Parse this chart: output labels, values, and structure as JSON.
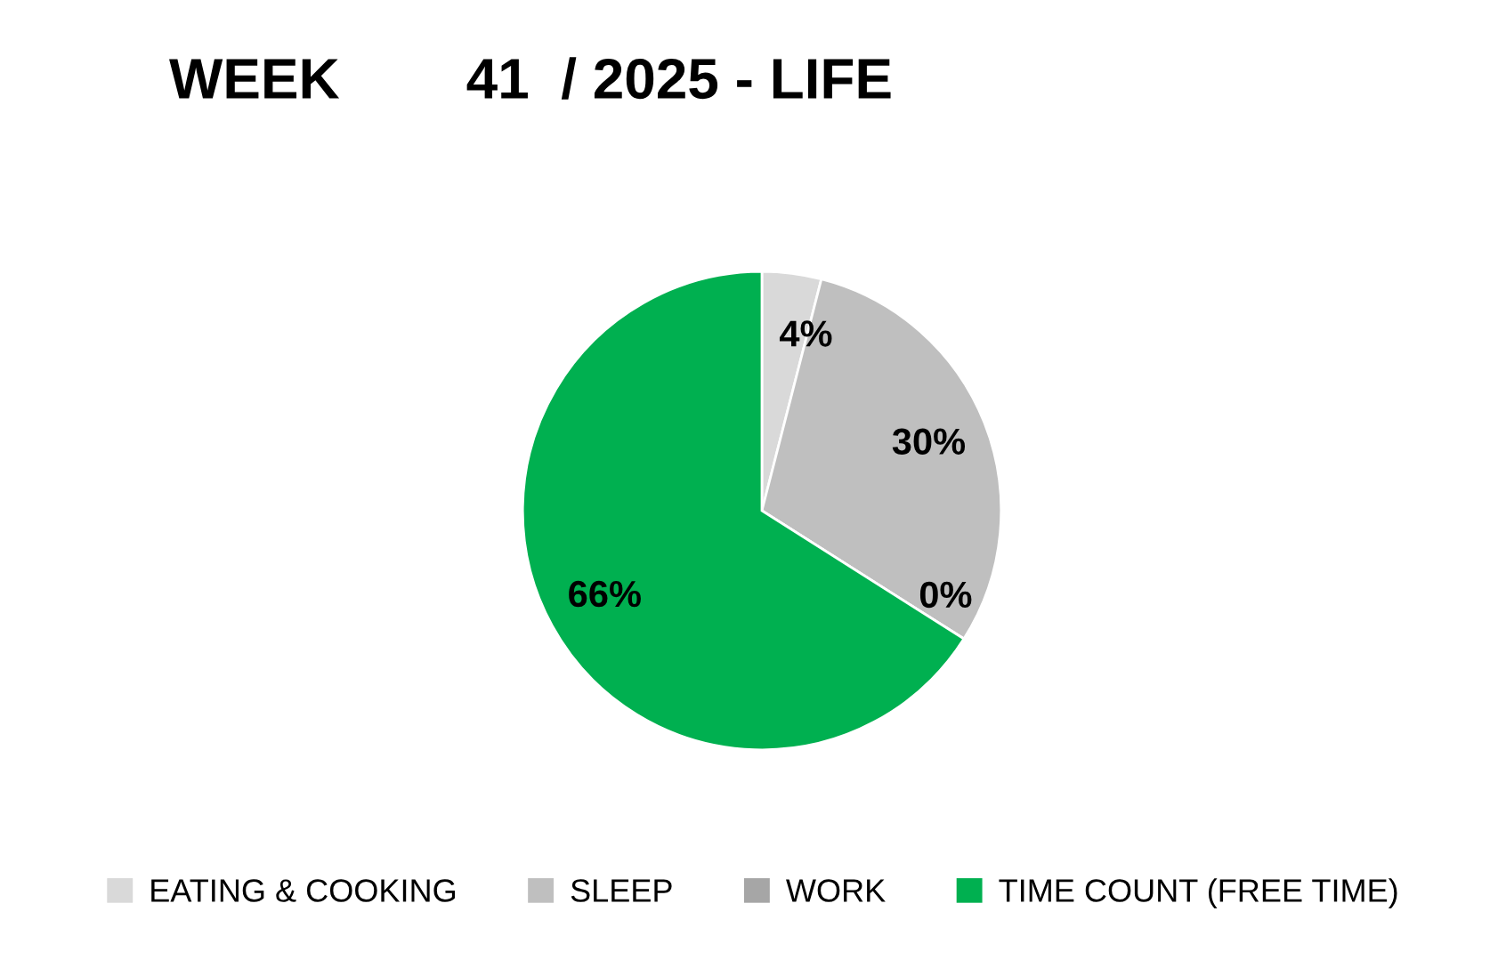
{
  "chart_data": {
    "type": "pie",
    "title": "WEEK        41  / 2025 - LIFE",
    "categories": [
      "EATING & COOKING",
      "SLEEP",
      "WORK",
      "TIME COUNT (FREE TIME)"
    ],
    "values": [
      4,
      30,
      0,
      66
    ],
    "colors": [
      "#d9d9d9",
      "#bfbfbf",
      "#a6a6a6",
      "#00b050"
    ],
    "value_labels": [
      "4%",
      "30%",
      "0%",
      "66%"
    ],
    "legend": "bottom"
  }
}
